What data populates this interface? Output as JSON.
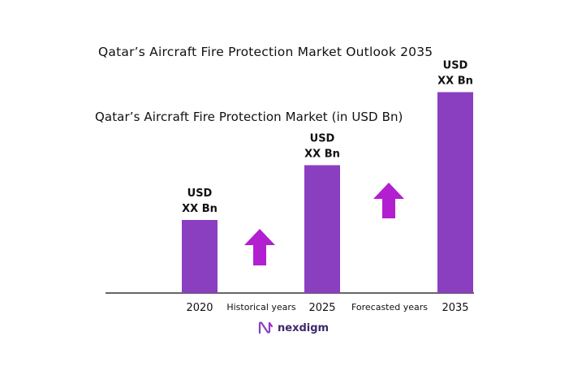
{
  "chart_data": {
    "type": "bar",
    "title": "Qatar’s Aircraft Fire Protection Market Outlook 2035",
    "subtitle": "Qatar’s Aircraft Fire Protection Market (in USD Bn)",
    "categories": [
      "2020",
      "2025",
      "2035"
    ],
    "values": [
      1.0,
      1.75,
      2.75
    ],
    "data_labels": [
      {
        "line1": "USD",
        "line2": "XX Bn"
      },
      {
        "line1": "USD",
        "line2": "XX Bn"
      },
      {
        "line1": "USD",
        "line2": "XX Bn"
      }
    ],
    "period_labels": [
      "Historical years",
      "Forecasted years"
    ],
    "bar_color": "#8a3fc1",
    "arrow_color": "#b21fd0",
    "axis_color": "#333333",
    "grid": false,
    "legend": "none"
  },
  "brand": {
    "name": "nexdigm",
    "icon": "nexdigm-logo-icon",
    "color": "#3b2a6b"
  }
}
